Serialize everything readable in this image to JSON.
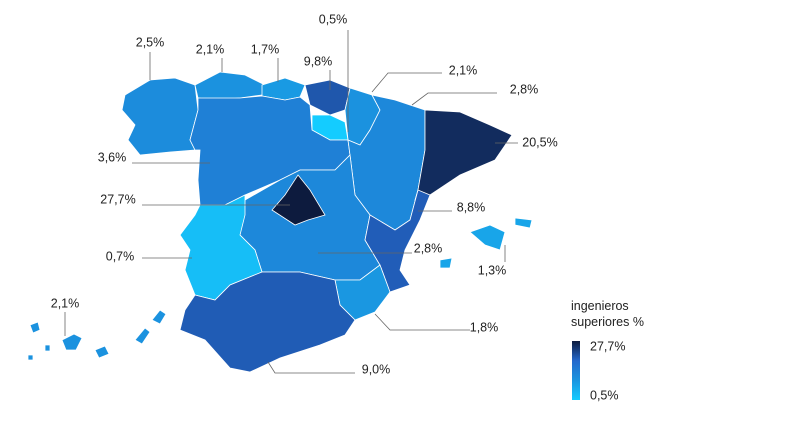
{
  "map": {
    "regions": [
      {
        "value": 2.5,
        "label": "2,5%"
      },
      {
        "value": 2.1,
        "label": "2,1%"
      },
      {
        "value": 1.7,
        "label": "1,7%"
      },
      {
        "value": 9.8,
        "label": "9,8%"
      },
      {
        "value": 0.5,
        "label": "0,5%"
      },
      {
        "value": 2.1,
        "label": "2,1%"
      },
      {
        "value": 2.8,
        "label": "2,8%"
      },
      {
        "value": 20.5,
        "label": "20,5%"
      },
      {
        "value": 3.6,
        "label": "3,6%"
      },
      {
        "value": 27.7,
        "label": "27,7%"
      },
      {
        "value": 0.7,
        "label": "0,7%"
      },
      {
        "value": 2.8,
        "label": "2,8%"
      },
      {
        "value": 8.8,
        "label": "8,8%"
      },
      {
        "value": 1.8,
        "label": "1,8%"
      },
      {
        "value": 9.0,
        "label": "9,0%"
      },
      {
        "value": 1.3,
        "label": "1,3%"
      },
      {
        "value": 2.1,
        "label": "2,1%"
      }
    ],
    "color_scale": {
      "scale": "log",
      "colors": [
        "#14ccff",
        "#1a95e0",
        "#2468cc",
        "#0d1b3e"
      ]
    }
  },
  "legend": {
    "title": "ingenieros superiores %",
    "max": {
      "value": 27.7,
      "label": "27,7%"
    },
    "min": {
      "value": 0.5,
      "label": "0,5%"
    }
  }
}
